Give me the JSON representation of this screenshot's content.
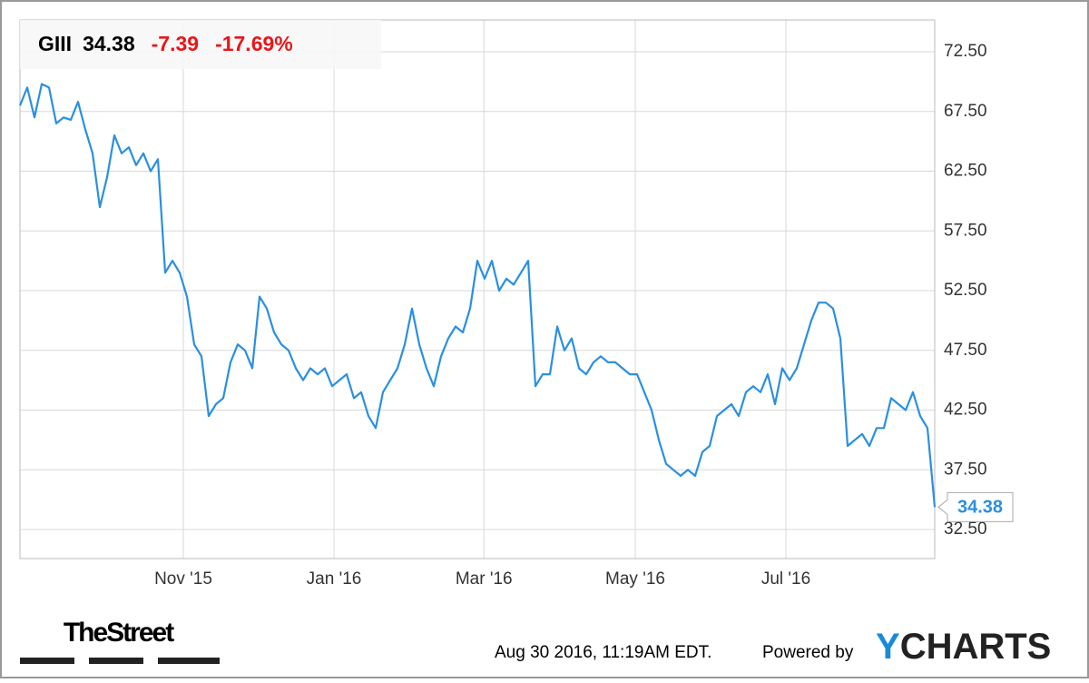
{
  "chart_data": {
    "type": "line",
    "header": {
      "ticker": "GIII",
      "change": "-7.39",
      "change_percent": "-17.69%"
    },
    "series": [
      {
        "name": "GIII",
        "color": "#2b8fe0",
        "values": [
          68,
          69.5,
          67,
          69.8,
          69.5,
          66.5,
          67,
          66.8,
          68.3,
          66,
          64,
          59.5,
          62,
          65.5,
          64,
          64.5,
          63,
          64,
          62.5,
          63.5,
          54,
          55,
          54,
          52,
          48,
          47,
          42,
          43,
          43.5,
          46.5,
          48,
          47.5,
          46,
          52,
          51,
          49,
          48,
          47.5,
          46,
          45,
          46,
          45.5,
          46,
          44.5,
          45,
          45.5,
          43.5,
          44,
          42,
          41,
          44,
          45,
          46,
          48,
          51,
          48,
          46,
          44.5,
          47,
          48.5,
          49.5,
          49,
          51,
          55,
          53.5,
          55,
          52.5,
          53.5,
          53,
          54,
          55,
          44.5,
          45.5,
          45.5,
          49.5,
          47.5,
          48.5,
          46,
          45.5,
          46.5,
          47,
          46.5,
          46.5,
          46,
          45.5,
          45.5,
          44,
          42.5,
          40,
          38,
          37.5,
          37,
          37.5,
          37,
          39,
          39.5,
          42,
          42.5,
          43,
          42,
          44,
          44.5,
          44,
          45.5,
          43,
          46,
          45,
          46,
          48,
          50,
          51.5,
          51.5,
          51,
          48.5,
          39.5,
          40,
          40.5,
          39.5,
          41,
          41,
          43.5,
          43,
          42.5,
          44,
          42,
          41,
          34.38
        ]
      }
    ],
    "xlim": [
      0,
      126
    ],
    "xticks": [
      {
        "value": 22.5,
        "label": "Nov '15"
      },
      {
        "value": 43.25,
        "label": "Jan '16"
      },
      {
        "value": 63.9,
        "label": "Mar '16"
      },
      {
        "value": 84.75,
        "label": "May '16"
      },
      {
        "value": 105.5,
        "label": "Jul '16"
      }
    ],
    "ylim": [
      30.07,
      75.16
    ],
    "yticks": [
      {
        "value": 32.5,
        "label": "32.50"
      },
      {
        "value": 37.5,
        "label": "37.50"
      },
      {
        "value": 42.5,
        "label": "42.50"
      },
      {
        "value": 47.5,
        "label": "47.50"
      },
      {
        "value": 52.5,
        "label": "52.50"
      },
      {
        "value": 57.5,
        "label": "57.50"
      },
      {
        "value": 62.5,
        "label": "62.50"
      },
      {
        "value": 67.5,
        "label": "67.50"
      },
      {
        "value": 72.5,
        "label": "72.50"
      }
    ],
    "grid": true,
    "footer": {
      "source_logo": "TheStreet",
      "timestamp": "Aug 30 2016, 11:19AM EDT.",
      "powered_by": "Powered by",
      "logo_y": "Y",
      "logo_rest": "CHARTS"
    }
  }
}
